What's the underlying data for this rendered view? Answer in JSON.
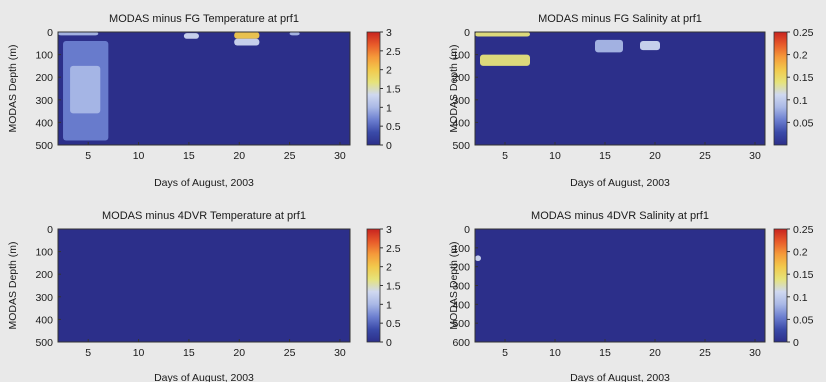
{
  "colormap": [
    "#2c2f8a",
    "#3a4aa8",
    "#6c7fd0",
    "#a9b8e6",
    "#cfd8f0",
    "#e6e37a",
    "#f2c94c",
    "#f59a3a",
    "#e85a2a",
    "#c8231f"
  ],
  "chart_data": [
    {
      "type": "heatmap",
      "title": "MODAS minus FG Temperature at prf1",
      "xlabel": "Days of August, 2003",
      "ylabel": "MODAS Depth (m)",
      "xlim": [
        2,
        31
      ],
      "ylim": [
        500,
        0
      ],
      "xticks": [
        5,
        10,
        15,
        20,
        25,
        30
      ],
      "yticks": [
        0,
        100,
        200,
        300,
        400,
        500
      ],
      "colorbar": {
        "range": [
          0,
          3
        ],
        "ticks": [
          0,
          0.5,
          1,
          1.5,
          2,
          2.5,
          3
        ]
      },
      "regions": [
        {
          "day_from": 2.5,
          "day_to": 7.0,
          "depth_from": 40,
          "depth_to": 480,
          "value": 0.7
        },
        {
          "day_from": 3.2,
          "day_to": 6.2,
          "depth_from": 150,
          "depth_to": 360,
          "value": 1.0
        },
        {
          "day_from": 2.0,
          "day_to": 6.0,
          "depth_from": 0,
          "depth_to": 15,
          "value": 0.9
        },
        {
          "day_from": 14.5,
          "day_to": 16.0,
          "depth_from": 5,
          "depth_to": 30,
          "value": 1.2
        },
        {
          "day_from": 19.5,
          "day_to": 22.0,
          "depth_from": 0,
          "depth_to": 30,
          "value": 2.0
        },
        {
          "day_from": 19.5,
          "day_to": 22.0,
          "depth_from": 30,
          "depth_to": 60,
          "value": 1.2
        },
        {
          "day_from": 25.0,
          "day_to": 26.0,
          "depth_from": 0,
          "depth_to": 15,
          "value": 1.0
        }
      ]
    },
    {
      "type": "heatmap",
      "title": "MODAS minus FG Salinity at prf1",
      "xlabel": "Days of August, 2003",
      "ylabel": "MODAS Depth (m)",
      "xlim": [
        2,
        31
      ],
      "ylim": [
        500,
        0
      ],
      "xticks": [
        5,
        10,
        15,
        20,
        25,
        30
      ],
      "yticks": [
        0,
        100,
        200,
        300,
        400,
        500
      ],
      "colorbar": {
        "range": [
          0,
          0.25
        ],
        "ticks": [
          0.05,
          0.1,
          0.15,
          0.2,
          0.25
        ]
      },
      "regions": [
        {
          "day_from": 2.0,
          "day_to": 7.5,
          "depth_from": 0,
          "depth_to": 20,
          "value": 0.13
        },
        {
          "day_from": 2.5,
          "day_to": 7.5,
          "depth_from": 100,
          "depth_to": 150,
          "value": 0.15
        },
        {
          "day_from": 14.0,
          "day_to": 16.8,
          "depth_from": 35,
          "depth_to": 90,
          "value": 0.09
        },
        {
          "day_from": 18.5,
          "day_to": 20.5,
          "depth_from": 40,
          "depth_to": 80,
          "value": 0.11
        }
      ]
    },
    {
      "type": "heatmap",
      "title": "MODAS minus 4DVR Temperature at prf1",
      "xlabel": "Days of August, 2003",
      "ylabel": "MODAS Depth (m)",
      "xlim": [
        2,
        31
      ],
      "ylim": [
        500,
        0
      ],
      "xticks": [
        5,
        10,
        15,
        20,
        25,
        30
      ],
      "yticks": [
        0,
        100,
        200,
        300,
        400,
        500
      ],
      "colorbar": {
        "range": [
          0,
          3
        ],
        "ticks": [
          0,
          0.5,
          1,
          1.5,
          2,
          2.5,
          3
        ]
      },
      "regions": []
    },
    {
      "type": "heatmap",
      "title": "MODAS minus 4DVR Salinity at prf1",
      "xlabel": "Days of August, 2003",
      "ylabel": "MODAS Depth (m)",
      "xlim": [
        2,
        31
      ],
      "ylim": [
        600,
        0
      ],
      "xticks": [
        5,
        10,
        15,
        20,
        25,
        30
      ],
      "yticks": [
        0,
        100,
        200,
        300,
        400,
        500,
        600
      ],
      "colorbar": {
        "range": [
          0,
          0.25
        ],
        "ticks": [
          0,
          0.05,
          0.1,
          0.15,
          0.2,
          0.25
        ]
      },
      "regions": [
        {
          "day_from": 2.0,
          "day_to": 2.6,
          "depth_from": 140,
          "depth_to": 170,
          "value": 0.1
        }
      ]
    }
  ]
}
